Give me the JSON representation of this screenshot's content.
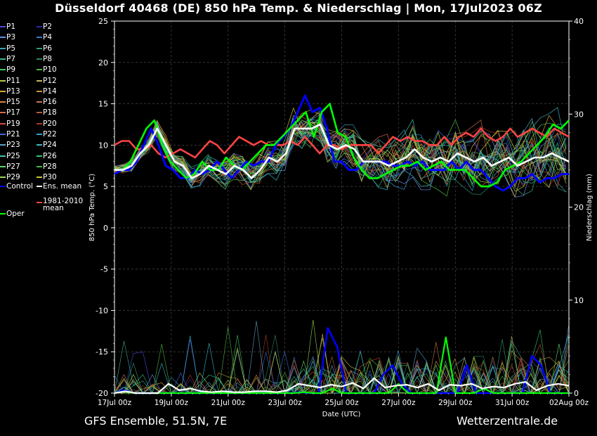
{
  "title": "Düsseldorf 40468 (DE)  850 hPa Temp. & Niederschlag | Mon, 17Jul2023 06Z",
  "footer": {
    "left": "GFS Ensemble, 51.5N, 7E",
    "right": "Wetterzentrale.de"
  },
  "chart_data": {
    "type": "line",
    "xlabel": "Date (UTC)",
    "ylabel_left": "850 hPa Temp. (°C)",
    "ylabel_right": "Niederschlag (mm)",
    "ylim_left": [
      -20,
      25
    ],
    "ylim_right": [
      0,
      40
    ],
    "yticks_left": [
      "-20",
      "-15",
      "-10",
      "-5",
      "0",
      "5",
      "10",
      "15",
      "20",
      "25"
    ],
    "yticks_right": [
      "0",
      "10",
      "20",
      "30",
      "40"
    ],
    "xticks": [
      "17Jul 00z",
      "19Jul 00z",
      "21Jul 00z",
      "23Jul 00z",
      "25Jul 00z",
      "27Jul 00z",
      "29Jul 00z",
      "31Jul 00z",
      "02Aug 00z"
    ],
    "grid": true,
    "legend_placement": "left outside",
    "legend": [
      {
        "name": "P1",
        "color": "#4a4ad8"
      },
      {
        "name": "P2",
        "color": "#2a2aa8"
      },
      {
        "name": "P3",
        "color": "#6a8ce0"
      },
      {
        "name": "P4",
        "color": "#3a7ac8"
      },
      {
        "name": "P5",
        "color": "#3aa0b8"
      },
      {
        "name": "P6",
        "color": "#2aa07a"
      },
      {
        "name": "P7",
        "color": "#3ab08a"
      },
      {
        "name": "P8",
        "color": "#2a8a5a"
      },
      {
        "name": "P9",
        "color": "#3ac86a"
      },
      {
        "name": "P10",
        "color": "#4ab83a"
      },
      {
        "name": "P11",
        "color": "#b8c84a"
      },
      {
        "name": "P12",
        "color": "#c8b85a"
      },
      {
        "name": "P13",
        "color": "#d8a83a"
      },
      {
        "name": "P14",
        "color": "#c8983a"
      },
      {
        "name": "P15",
        "color": "#d8884a"
      },
      {
        "name": "P16",
        "color": "#c8784a"
      },
      {
        "name": "P17",
        "color": "#d86a4a"
      },
      {
        "name": "P18",
        "color": "#b85a3a"
      },
      {
        "name": "P19",
        "color": "#d84a3a"
      },
      {
        "name": "P20",
        "color": "#a83a2a"
      },
      {
        "name": "P21",
        "color": "#3a6ad8"
      },
      {
        "name": "P22",
        "color": "#3a9ad8"
      },
      {
        "name": "P23",
        "color": "#5aa0c8"
      },
      {
        "name": "P24",
        "color": "#3ab8c8"
      },
      {
        "name": "P25",
        "color": "#3ac8a8"
      },
      {
        "name": "P26",
        "color": "#2ac87a"
      },
      {
        "name": "P27",
        "color": "#5ad86a"
      },
      {
        "name": "P28",
        "color": "#4ab84a"
      },
      {
        "name": "P29",
        "color": "#9ad84a"
      },
      {
        "name": "P30",
        "color": "#c8c83a"
      },
      {
        "name": "Control",
        "color": "#0000ff"
      },
      {
        "name": "Ens. mean",
        "color": "#ffffff"
      },
      {
        "name": "1981-2010 mean",
        "color": "#ff4444"
      },
      {
        "name": "Oper",
        "color": "#00ff00"
      }
    ],
    "x_days": [
      0,
      0.25,
      0.5,
      0.75,
      1,
      1.25,
      1.5,
      1.75,
      2,
      2.25,
      2.5,
      2.75,
      3,
      3.25,
      3.5,
      3.75,
      4,
      4.25,
      4.5,
      4.75,
      5,
      5.25,
      5.5,
      5.75,
      6,
      6.25,
      6.5,
      6.75,
      7,
      7.25,
      7.5,
      7.75,
      8,
      8.25,
      8.5,
      8.75,
      9,
      9.25,
      9.5,
      9.75,
      10,
      10.25,
      10.5,
      10.75,
      11,
      11.25,
      11.5,
      11.75,
      12,
      12.25,
      12.5,
      12.75,
      13,
      13.25,
      13.5,
      13.75,
      14,
      14.25,
      14.5,
      14.75,
      15,
      15.25,
      15.5,
      15.75,
      16
    ],
    "series": [
      {
        "name": "Ens. mean",
        "values": [
          7,
          7,
          7.5,
          9,
          10,
          12,
          10,
          8,
          7.5,
          6,
          6.5,
          7.5,
          7,
          6.5,
          7.5,
          7,
          6,
          7,
          8.5,
          8,
          9,
          12,
          12,
          12,
          12.5,
          10,
          9.5,
          10,
          9.5,
          8,
          8,
          8,
          7.5,
          8,
          8.5,
          9.5,
          8.5,
          8,
          8.5,
          8,
          9,
          8.5,
          8,
          8.5,
          7.5,
          8,
          8.5,
          7.5,
          8,
          8.5,
          8.5,
          9,
          8.5,
          8
        ]
      },
      {
        "name": "1981-2010 mean",
        "values": [
          10,
          10.5,
          10.5,
          9.5,
          9.5,
          10,
          9,
          8.5,
          9,
          9.5,
          9,
          8.5,
          9.5,
          10.5,
          10,
          9,
          10,
          11,
          10.5,
          10,
          10.5,
          10,
          10,
          10,
          10.5,
          10,
          11,
          10,
          9,
          10,
          10,
          9.5,
          10,
          10,
          10,
          10,
          9,
          10,
          11,
          10.5,
          11,
          10.5,
          10.5,
          10,
          10,
          11,
          10,
          11,
          11.5,
          11,
          12,
          11,
          10.5,
          11,
          12,
          11,
          11.5,
          12,
          11.5,
          11,
          12,
          11.5,
          11
        ]
      },
      {
        "name": "Control",
        "values": [
          6.5,
          7,
          7,
          8,
          10,
          12,
          10,
          7.5,
          7,
          6,
          6,
          7,
          6.5,
          7,
          8,
          7,
          6,
          7,
          8,
          7.5,
          8,
          8,
          10,
          11,
          12,
          14,
          16,
          14,
          14.5,
          12,
          8,
          8,
          7,
          7,
          8,
          8,
          8,
          8,
          7.5,
          7.5,
          8,
          7.5,
          8,
          7,
          7,
          7,
          8,
          7,
          8,
          7,
          7,
          6,
          5,
          4.5,
          5,
          6,
          6,
          6.5,
          5.5,
          6,
          6,
          6.5,
          6.5
        ]
      },
      {
        "name": "Oper",
        "values": [
          7,
          7,
          8,
          10,
          12,
          13,
          10,
          8,
          7,
          6,
          6.5,
          8,
          7,
          7,
          8.5,
          7.5,
          7,
          8,
          9,
          10,
          10,
          11,
          12,
          13,
          14,
          11,
          14,
          15,
          11.5,
          11,
          8.5,
          7,
          6,
          6,
          6.5,
          7,
          7.5,
          7.5,
          8,
          7,
          7.5,
          8,
          7,
          7,
          7,
          6,
          5,
          5,
          5.5,
          7,
          7.5,
          8,
          9,
          10,
          11,
          12.5,
          12,
          13
        ]
      }
    ],
    "precip_series": [
      {
        "name": "Ens. mean",
        "values": [
          0,
          0.2,
          0,
          0,
          0,
          1,
          0.3,
          0.5,
          0.2,
          0.1,
          0.2,
          0.1,
          0.1,
          0.2,
          0.2,
          0.1,
          0.3,
          1,
          0.8,
          0.6,
          0.9,
          0.7,
          1.1,
          0.5,
          1.6,
          0.6,
          0.8,
          0.9,
          0.6,
          1,
          0.3,
          0.9,
          0.8,
          1,
          0.5,
          0.7,
          0.6,
          1,
          1.2,
          0.3,
          0.8,
          1,
          0.8
        ]
      },
      {
        "name": "Control",
        "values": [
          0,
          0.3,
          0,
          0,
          0,
          0,
          0,
          0,
          0,
          0,
          0,
          0,
          0,
          0,
          0,
          0,
          0,
          0,
          0,
          0,
          0.1,
          0,
          0,
          7,
          5,
          0,
          0,
          0,
          0,
          2,
          3,
          1,
          0,
          0,
          0,
          0,
          0,
          0,
          3,
          0,
          0,
          0,
          0,
          0,
          0,
          4,
          3,
          0,
          0,
          0
        ]
      },
      {
        "name": "Oper",
        "values": [
          0,
          0.2,
          0,
          0,
          0,
          0,
          0,
          0,
          0,
          0,
          0,
          0,
          0,
          0,
          0,
          0,
          0,
          0,
          0,
          0,
          0.1,
          0,
          0,
          0.5,
          0,
          0,
          0,
          0,
          0,
          0,
          1,
          0,
          0,
          0,
          0,
          6,
          0,
          0,
          0,
          0.5,
          0,
          0,
          0,
          0,
          0,
          0,
          0,
          0,
          0
        ]
      }
    ]
  }
}
